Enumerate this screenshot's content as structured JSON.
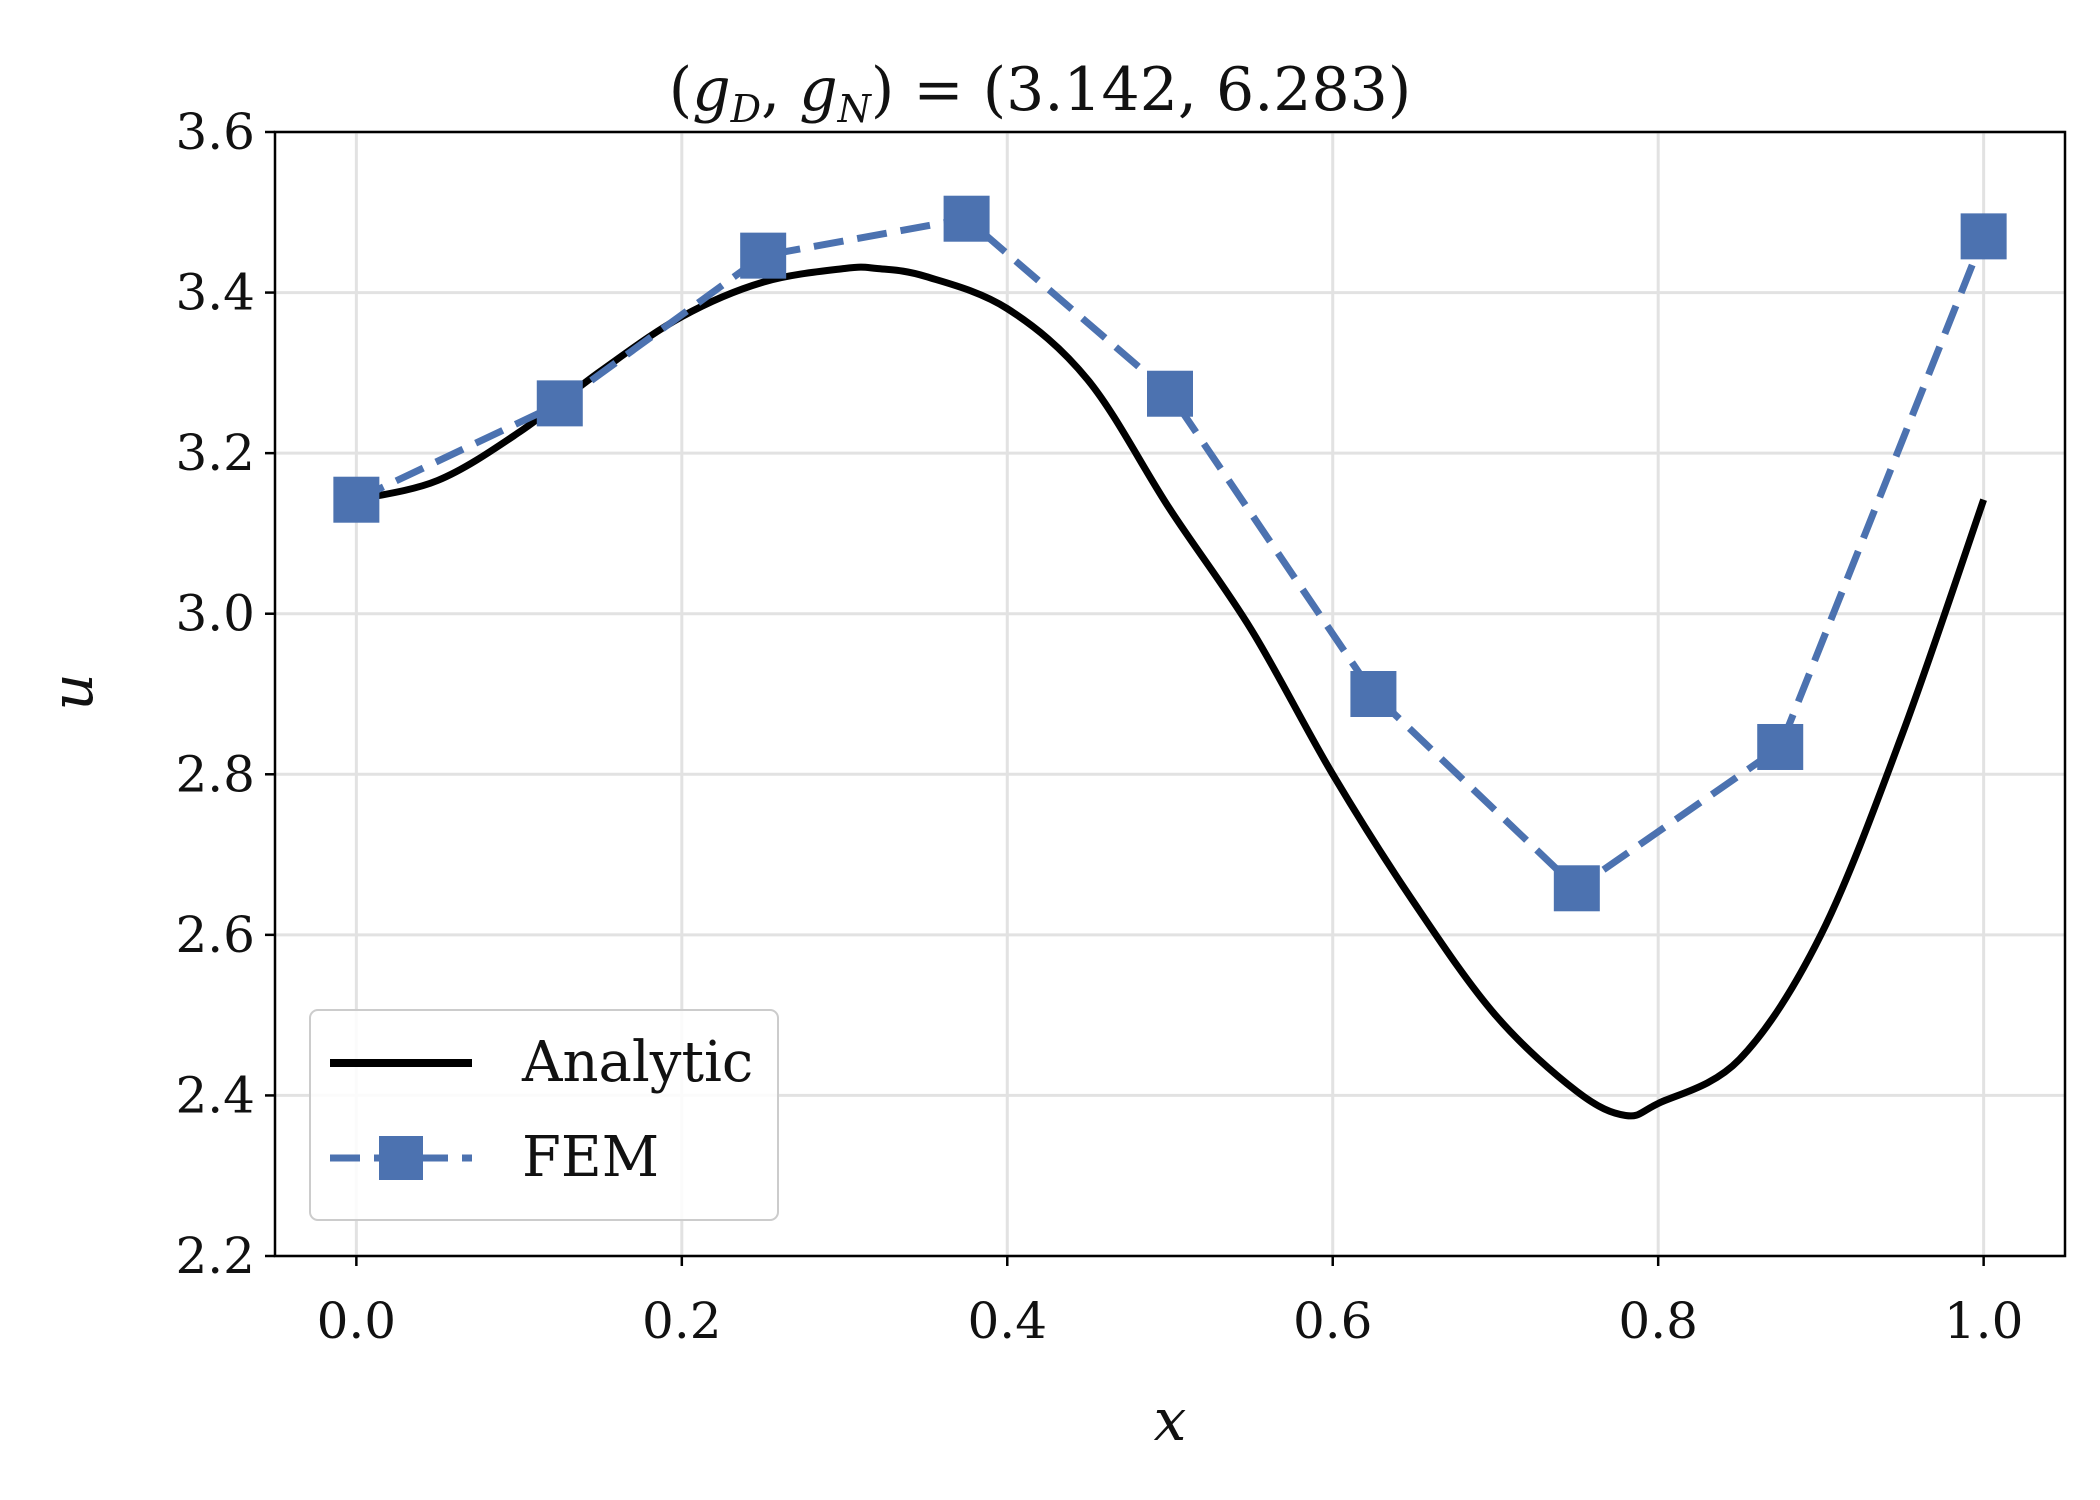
{
  "chart_data": {
    "type": "line",
    "title": "(g_D, g_N) = (3.142, 6.283)",
    "title_parts": {
      "open": "(",
      "g1": "g",
      "sub1": "D",
      "comma": ", ",
      "g2": "g",
      "sub2": "N",
      "close": ") = (3.142, 6.283)"
    },
    "xlabel": "x",
    "ylabel": "u",
    "xlim": [
      -0.05,
      1.05
    ],
    "ylim": [
      2.2,
      3.6
    ],
    "xticks": [
      0.0,
      0.2,
      0.4,
      0.6,
      0.8,
      1.0
    ],
    "yticks": [
      2.2,
      2.4,
      2.6,
      2.8,
      3.0,
      3.2,
      3.4,
      3.6
    ],
    "xtick_labels": [
      "0.0",
      "0.2",
      "0.4",
      "0.6",
      "0.8",
      "1.0"
    ],
    "ytick_labels": [
      "2.2",
      "2.4",
      "2.6",
      "2.8",
      "3.0",
      "3.2",
      "3.4",
      "3.6"
    ],
    "grid": true,
    "legend_position": "lower-left",
    "series": [
      {
        "name": "Analytic",
        "style": "solid",
        "marker": "none",
        "color": "#000000",
        "x": [
          0.0,
          0.05,
          0.1,
          0.15,
          0.2,
          0.25,
          0.3,
          0.32,
          0.35,
          0.4,
          0.45,
          0.5,
          0.55,
          0.6,
          0.65,
          0.7,
          0.75,
          0.78,
          0.8,
          0.85,
          0.9,
          0.95,
          1.0
        ],
        "values": [
          3.142,
          3.166,
          3.226,
          3.302,
          3.37,
          3.413,
          3.43,
          3.43,
          3.42,
          3.38,
          3.29,
          3.13,
          2.98,
          2.8,
          2.64,
          2.5,
          2.405,
          2.375,
          2.39,
          2.445,
          2.6,
          2.85,
          3.142
        ]
      },
      {
        "name": "FEM",
        "style": "dashed",
        "marker": "square",
        "color": "#4c72b0",
        "x": [
          0.0,
          0.125,
          0.25,
          0.375,
          0.5,
          0.625,
          0.75,
          0.875,
          1.0
        ],
        "values": [
          3.142,
          3.262,
          3.446,
          3.492,
          3.274,
          2.9,
          2.658,
          2.834,
          3.47
        ]
      }
    ]
  }
}
